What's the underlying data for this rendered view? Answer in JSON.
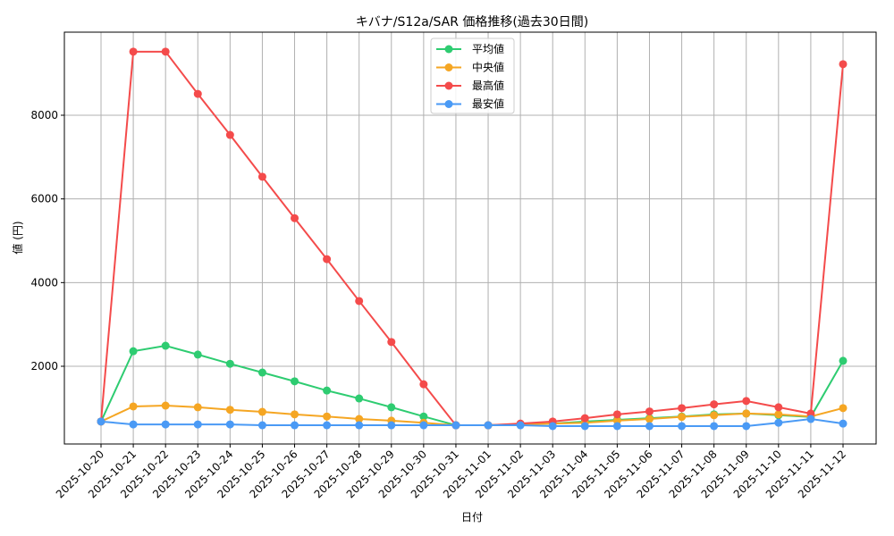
{
  "chart_data": {
    "type": "line",
    "title": "キバナ/S12a/SAR 価格推移(過去30日間)",
    "xlabel": "日付",
    "ylabel": "値 (円)",
    "ylim": [
      250,
      9900
    ],
    "yticks": [
      2000,
      4000,
      6000,
      8000
    ],
    "grid": true,
    "legend_position": "upper center",
    "categories": [
      "2025-10-20",
      "2025-10-21",
      "2025-10-22",
      "2025-10-23",
      "2025-10-24",
      "2025-10-25",
      "2025-10-26",
      "2025-10-27",
      "2025-10-28",
      "2025-10-29",
      "2025-10-30",
      "2025-10-31",
      "2025-11-01",
      "2025-11-02",
      "2025-11-03",
      "2025-11-04",
      "2025-11-05",
      "2025-11-06",
      "2025-11-07",
      "2025-11-08",
      "2025-11-09",
      "2025-11-10",
      "2025-11-11",
      "2025-11-12"
    ],
    "series": [
      {
        "name": "平均値",
        "color": "#2ecc71",
        "values": [
          680,
          2360,
          2490,
          2280,
          2060,
          1850,
          1640,
          1420,
          1230,
          1020,
          800,
          590,
          590,
          610,
          630,
          680,
          720,
          760,
          800,
          850,
          870,
          830,
          790,
          2130
        ]
      },
      {
        "name": "中央値",
        "color": "#f5a623",
        "values": [
          680,
          1040,
          1060,
          1020,
          960,
          910,
          850,
          800,
          740,
          700,
          650,
          590,
          590,
          610,
          630,
          650,
          700,
          740,
          790,
          830,
          870,
          850,
          800,
          1000
        ]
      },
      {
        "name": "最高値",
        "color": "#f44b4b",
        "values": [
          680,
          9520,
          9520,
          8510,
          7530,
          6530,
          5540,
          4560,
          3560,
          2580,
          1570,
          590,
          590,
          630,
          680,
          760,
          850,
          920,
          1000,
          1090,
          1170,
          1020,
          870,
          9220
        ]
      },
      {
        "name": "最安値",
        "color": "#4a9af5",
        "values": [
          680,
          610,
          610,
          610,
          610,
          590,
          590,
          590,
          590,
          590,
          590,
          590,
          590,
          590,
          570,
          570,
          570,
          570,
          570,
          570,
          570,
          650,
          740,
          630
        ]
      }
    ]
  }
}
